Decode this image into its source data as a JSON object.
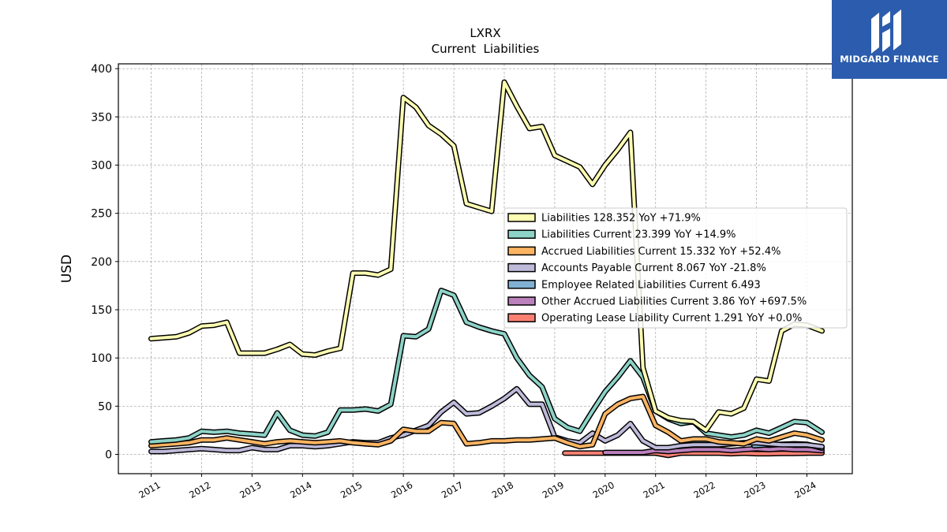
{
  "brand": {
    "name": "MIDGARD FINANCE",
    "logo_icon": "midgard-m-logo-icon",
    "bg_color": "#2b5cad"
  },
  "chart_data": {
    "type": "line",
    "title": "LXRX",
    "subtitle": "Current  Liabilities",
    "xlabel": "",
    "ylabel": "USD",
    "xlim": [
      2010.35,
      2024.9
    ],
    "ylim": [
      -20,
      405
    ],
    "x_ticks": [
      2011,
      2012,
      2013,
      2014,
      2015,
      2016,
      2017,
      2018,
      2019,
      2020,
      2021,
      2022,
      2023,
      2024
    ],
    "x_tick_labels": [
      "2011",
      "2012",
      "2013",
      "2014",
      "2015",
      "2016",
      "2017",
      "2018",
      "2019",
      "2020",
      "2021",
      "2022",
      "2023",
      "2024"
    ],
    "y_ticks": [
      0,
      50,
      100,
      150,
      200,
      250,
      300,
      350,
      400
    ],
    "y_tick_labels": [
      "0",
      "50",
      "100",
      "150",
      "200",
      "250",
      "300",
      "350",
      "400"
    ],
    "grid": true,
    "legend_position": "center-right",
    "series": [
      {
        "name": "Liabilities",
        "legend_label": "Liabilities  128.352 YoY +71.9%",
        "color": "#ffffb3",
        "x": [
          2011.0,
          2011.25,
          2011.5,
          2011.75,
          2012.0,
          2012.25,
          2012.5,
          2012.75,
          2013.0,
          2013.25,
          2013.5,
          2013.75,
          2014.0,
          2014.25,
          2014.5,
          2014.75,
          2015.0,
          2015.25,
          2015.5,
          2015.75,
          2016.0,
          2016.25,
          2016.5,
          2016.75,
          2017.0,
          2017.25,
          2017.5,
          2017.75,
          2018.0,
          2018.25,
          2018.5,
          2018.75,
          2019.0,
          2019.25,
          2019.5,
          2019.75,
          2020.0,
          2020.25,
          2020.5,
          2020.75,
          2021.0,
          2021.25,
          2021.5,
          2021.75,
          2022.0,
          2022.25,
          2022.5,
          2022.75,
          2023.0,
          2023.25,
          2023.5,
          2023.75,
          2024.0,
          2024.3
        ],
        "y": [
          120,
          121,
          122,
          126,
          133,
          134,
          137,
          105,
          105,
          105,
          109,
          114,
          104,
          103,
          107,
          110,
          188,
          188,
          186,
          192,
          370,
          360,
          341,
          332,
          320,
          260,
          256,
          252,
          386,
          361,
          338,
          340,
          310,
          304,
          298,
          280,
          300,
          316,
          334,
          90,
          45,
          38,
          35,
          34,
          25,
          44,
          42,
          48,
          78,
          76,
          128,
          135,
          134,
          128
        ]
      },
      {
        "name": "Liabilities Current",
        "legend_label": "Liabilities Current  23.399 YoY +14.9%",
        "color": "#8dd3c7",
        "x": [
          2011.0,
          2011.25,
          2011.5,
          2011.75,
          2012.0,
          2012.25,
          2012.5,
          2012.75,
          2013.0,
          2013.25,
          2013.5,
          2013.75,
          2014.0,
          2014.25,
          2014.5,
          2014.75,
          2015.0,
          2015.25,
          2015.5,
          2015.75,
          2016.0,
          2016.25,
          2016.5,
          2016.75,
          2017.0,
          2017.25,
          2017.5,
          2017.75,
          2018.0,
          2018.25,
          2018.5,
          2018.75,
          2019.0,
          2019.25,
          2019.5,
          2019.75,
          2020.0,
          2020.25,
          2020.5,
          2020.75,
          2021.0,
          2021.25,
          2021.5,
          2021.75,
          2022.0,
          2022.25,
          2022.5,
          2022.75,
          2023.0,
          2023.25,
          2023.5,
          2023.75,
          2024.0,
          2024.3
        ],
        "y": [
          13,
          14,
          15,
          17,
          24,
          23,
          24,
          22,
          21,
          20,
          43,
          25,
          20,
          19,
          23,
          46,
          46,
          47,
          45,
          52,
          123,
          122,
          130,
          170,
          165,
          137,
          132,
          128,
          125,
          100,
          82,
          70,
          37,
          28,
          24,
          45,
          65,
          80,
          97,
          80,
          45,
          37,
          32,
          34,
          22,
          20,
          18,
          20,
          25,
          22,
          28,
          34,
          33,
          23
        ]
      },
      {
        "name": "Accrued Liabilities Current",
        "legend_label": "Accrued Liabilities Current  15.332 YoY +52.4%",
        "color": "#fdb462",
        "x": [
          2011.0,
          2011.25,
          2011.5,
          2011.75,
          2012.0,
          2012.25,
          2012.5,
          2012.75,
          2013.0,
          2013.25,
          2013.5,
          2013.75,
          2014.0,
          2014.25,
          2014.5,
          2014.75,
          2015.0,
          2015.25,
          2015.5,
          2015.75,
          2016.0,
          2016.25,
          2016.5,
          2016.75,
          2017.0,
          2017.25,
          2017.5,
          2017.75,
          2018.0,
          2018.25,
          2018.5,
          2018.75,
          2019.0,
          2019.25,
          2019.5,
          2019.75,
          2020.0,
          2020.25,
          2020.5,
          2020.75,
          2021.0,
          2021.25,
          2021.5,
          2021.75,
          2022.0,
          2022.25,
          2022.5,
          2022.75,
          2023.0,
          2023.25,
          2023.5,
          2023.75,
          2024.0,
          2024.3
        ],
        "y": [
          9,
          10,
          11,
          12,
          15,
          15,
          17,
          15,
          13,
          11,
          13,
          14,
          13,
          12,
          13,
          14,
          12,
          11,
          10,
          14,
          26,
          24,
          24,
          33,
          32,
          11,
          12,
          14,
          14,
          15,
          15,
          16,
          17,
          12,
          8,
          10,
          42,
          52,
          58,
          60,
          30,
          23,
          14,
          16,
          16,
          13,
          12,
          11,
          16,
          14,
          18,
          22,
          20,
          15
        ]
      },
      {
        "name": "Accounts Payable Current",
        "legend_label": "Accounts Payable Current  8.067 YoY -21.8%",
        "color": "#bebada",
        "x": [
          2011.0,
          2011.25,
          2011.5,
          2011.75,
          2012.0,
          2012.25,
          2012.5,
          2012.75,
          2013.0,
          2013.25,
          2013.5,
          2013.75,
          2014.0,
          2014.25,
          2014.5,
          2014.75,
          2015.0,
          2015.25,
          2015.5,
          2015.75,
          2016.0,
          2016.25,
          2016.5,
          2016.75,
          2017.0,
          2017.25,
          2017.5,
          2017.75,
          2018.0,
          2018.25,
          2018.5,
          2018.75,
          2019.0,
          2019.25,
          2019.5,
          2019.75,
          2020.0,
          2020.25,
          2020.5,
          2020.75,
          2021.0,
          2021.25,
          2021.5,
          2021.75,
          2022.0,
          2022.25,
          2022.5,
          2022.75,
          2023.0,
          2023.25,
          2023.5,
          2023.75,
          2024.0,
          2024.3
        ],
        "y": [
          3,
          3,
          4,
          5,
          6,
          5,
          4,
          4,
          7,
          5,
          5,
          9,
          9,
          8,
          9,
          11,
          13,
          12,
          12,
          17,
          20,
          25,
          30,
          44,
          54,
          42,
          43,
          50,
          58,
          68,
          52,
          52,
          18,
          14,
          12,
          22,
          14,
          20,
          32,
          14,
          7,
          7,
          9,
          10,
          10,
          10,
          11,
          12,
          12,
          11,
          10,
          10,
          10,
          8
        ]
      },
      {
        "name": "Employee Related Liabilities Current",
        "legend_label": "Employee Related Liabilities Current  6.493",
        "color": "#80b1d3",
        "x": [
          2022.95,
          2023.25,
          2023.5,
          2023.75,
          2024.0,
          2024.3
        ],
        "y": [
          9,
          10,
          10.5,
          11,
          10.5,
          6.5
        ]
      },
      {
        "name": "Other Accrued Liabilities Current",
        "legend_label": "Other Accrued Liabilities Current  3.86 YoY +697.5%",
        "color": "#bc80bd",
        "x": [
          2020.0,
          2020.25,
          2020.5,
          2020.75,
          2021.0,
          2021.25,
          2021.5,
          2021.75,
          2022.0,
          2022.25,
          2022.5,
          2022.75,
          2023.0,
          2023.25,
          2023.5,
          2023.75,
          2024.0,
          2024.3
        ],
        "y": [
          2,
          2,
          2,
          2,
          4,
          3,
          4,
          5,
          5,
          5,
          4,
          5,
          6,
          5,
          6,
          5,
          5,
          3.86
        ]
      },
      {
        "name": "Operating Lease Liability Current",
        "legend_label": "Operating Lease Liability Current  1.291 YoY +0.0%",
        "color": "#fb8072",
        "x": [
          2019.2,
          2019.5,
          2019.75,
          2020.0,
          2020.25,
          2020.5,
          2020.75,
          2021.0,
          2021.25,
          2021.5,
          2021.75,
          2022.0,
          2022.25,
          2022.5,
          2022.75,
          2023.0,
          2023.25,
          2023.5,
          2023.75,
          2024.0,
          2024.3
        ],
        "y": [
          1.3,
          1.3,
          1.3,
          1.3,
          1.3,
          1.3,
          1.3,
          1.3,
          -1,
          1.3,
          1.3,
          1.3,
          1.3,
          0.8,
          1.3,
          0.8,
          0.8,
          1.0,
          1.0,
          1.3,
          1.3
        ]
      }
    ]
  }
}
